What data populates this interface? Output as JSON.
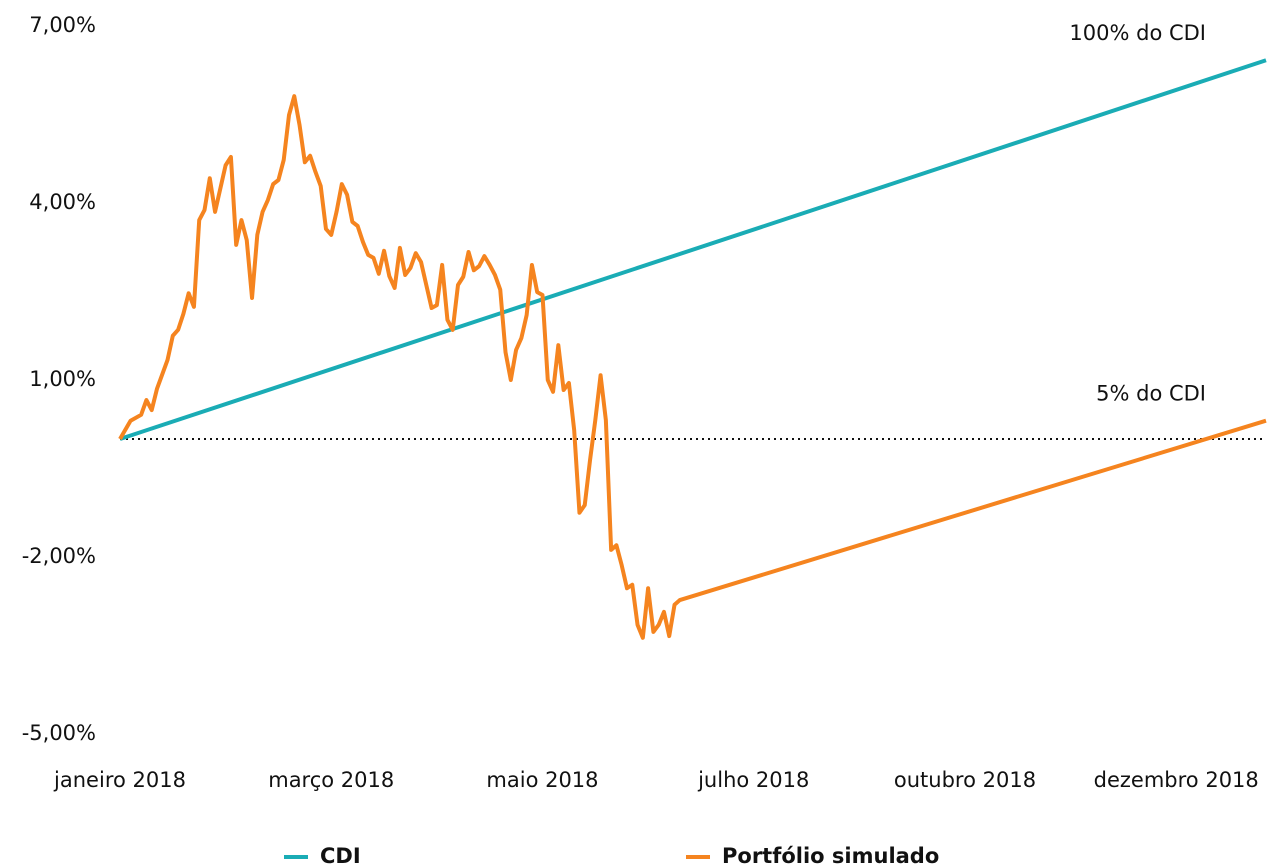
{
  "chart_data": {
    "type": "line",
    "xlim": [
      0,
      217
    ],
    "xticks": [
      {
        "value": 0,
        "label": "janeiro 2018"
      },
      {
        "value": 40,
        "label": "março 2018"
      },
      {
        "value": 80,
        "label": "maio 2018"
      },
      {
        "value": 120,
        "label": "julho 2018"
      },
      {
        "value": 160,
        "label": "outubro 2018"
      },
      {
        "value": 200,
        "label": "dezembro 2018"
      }
    ],
    "ylim": [
      -5,
      7
    ],
    "yticks": [
      {
        "value": 7,
        "label": "7,00%"
      },
      {
        "value": 4,
        "label": "4,00%"
      },
      {
        "value": 1,
        "label": "1,00%"
      },
      {
        "value": -2,
        "label": "-2,00%"
      },
      {
        "value": -5,
        "label": "-5,00%"
      }
    ],
    "zero_line": true,
    "legend": "bottom",
    "annotations": [
      {
        "text": "100% do CDI",
        "x": 217,
        "y": 6.42
      },
      {
        "text": "5% do CDI",
        "x": 217,
        "y": 0.31
      }
    ],
    "series": [
      {
        "name": "CDI",
        "color": "#1aacb5",
        "x": [
          0,
          217
        ],
        "values": [
          0,
          6.42
        ]
      },
      {
        "name": "Portfólio simulado",
        "color": "#f5841f",
        "x": [
          0,
          2,
          4,
          5,
          6,
          7,
          9,
          10,
          11,
          12,
          13,
          14,
          15,
          16,
          17,
          18,
          20,
          21,
          22,
          23,
          24,
          25,
          26,
          27,
          28,
          29,
          30,
          31,
          32,
          33,
          34,
          35,
          36,
          37,
          38,
          39,
          40,
          41,
          42,
          43,
          44,
          45,
          46,
          47,
          48,
          49,
          50,
          51,
          52,
          53,
          54,
          55,
          56,
          57,
          58,
          59,
          60,
          61,
          62,
          63,
          64,
          65,
          66,
          67,
          68,
          69,
          70,
          71,
          72,
          73,
          74,
          75,
          76,
          77,
          78,
          79,
          80,
          81,
          82,
          83,
          84,
          85,
          86,
          87,
          88,
          89,
          90,
          91,
          92,
          93,
          94,
          95,
          96,
          97,
          98,
          99,
          100,
          101,
          102,
          103,
          104,
          105,
          106,
          217
        ],
        "values": [
          0,
          0.31,
          0.41,
          0.66,
          0.49,
          0.85,
          1.34,
          1.75,
          1.85,
          2.12,
          2.47,
          2.24,
          3.71,
          3.88,
          4.42,
          3.85,
          4.64,
          4.78,
          3.29,
          3.71,
          3.37,
          2.39,
          3.46,
          3.85,
          4.05,
          4.32,
          4.39,
          4.73,
          5.49,
          5.81,
          5.32,
          4.69,
          4.8,
          4.53,
          4.29,
          3.56,
          3.46,
          3.85,
          4.32,
          4.14,
          3.68,
          3.61,
          3.34,
          3.12,
          3.07,
          2.8,
          3.19,
          2.76,
          2.56,
          3.24,
          2.78,
          2.9,
          3.15,
          3,
          2.61,
          2.22,
          2.27,
          2.95,
          2.02,
          1.85,
          2.61,
          2.75,
          3.17,
          2.86,
          2.93,
          3.1,
          2.95,
          2.78,
          2.53,
          1.47,
          1,
          1.51,
          1.71,
          2.1,
          2.95,
          2.49,
          2.44,
          1,
          0.8,
          1.59,
          0.83,
          0.95,
          0.15,
          -1.25,
          -1.12,
          -0.36,
          0.32,
          1.08,
          0.32,
          -1.88,
          -1.8,
          -2.14,
          -2.53,
          -2.47,
          -3.15,
          -3.37,
          -2.53,
          -3.27,
          -3.15,
          -2.93,
          -3.34,
          -2.81,
          -2.73,
          0.31
        ]
      }
    ]
  }
}
